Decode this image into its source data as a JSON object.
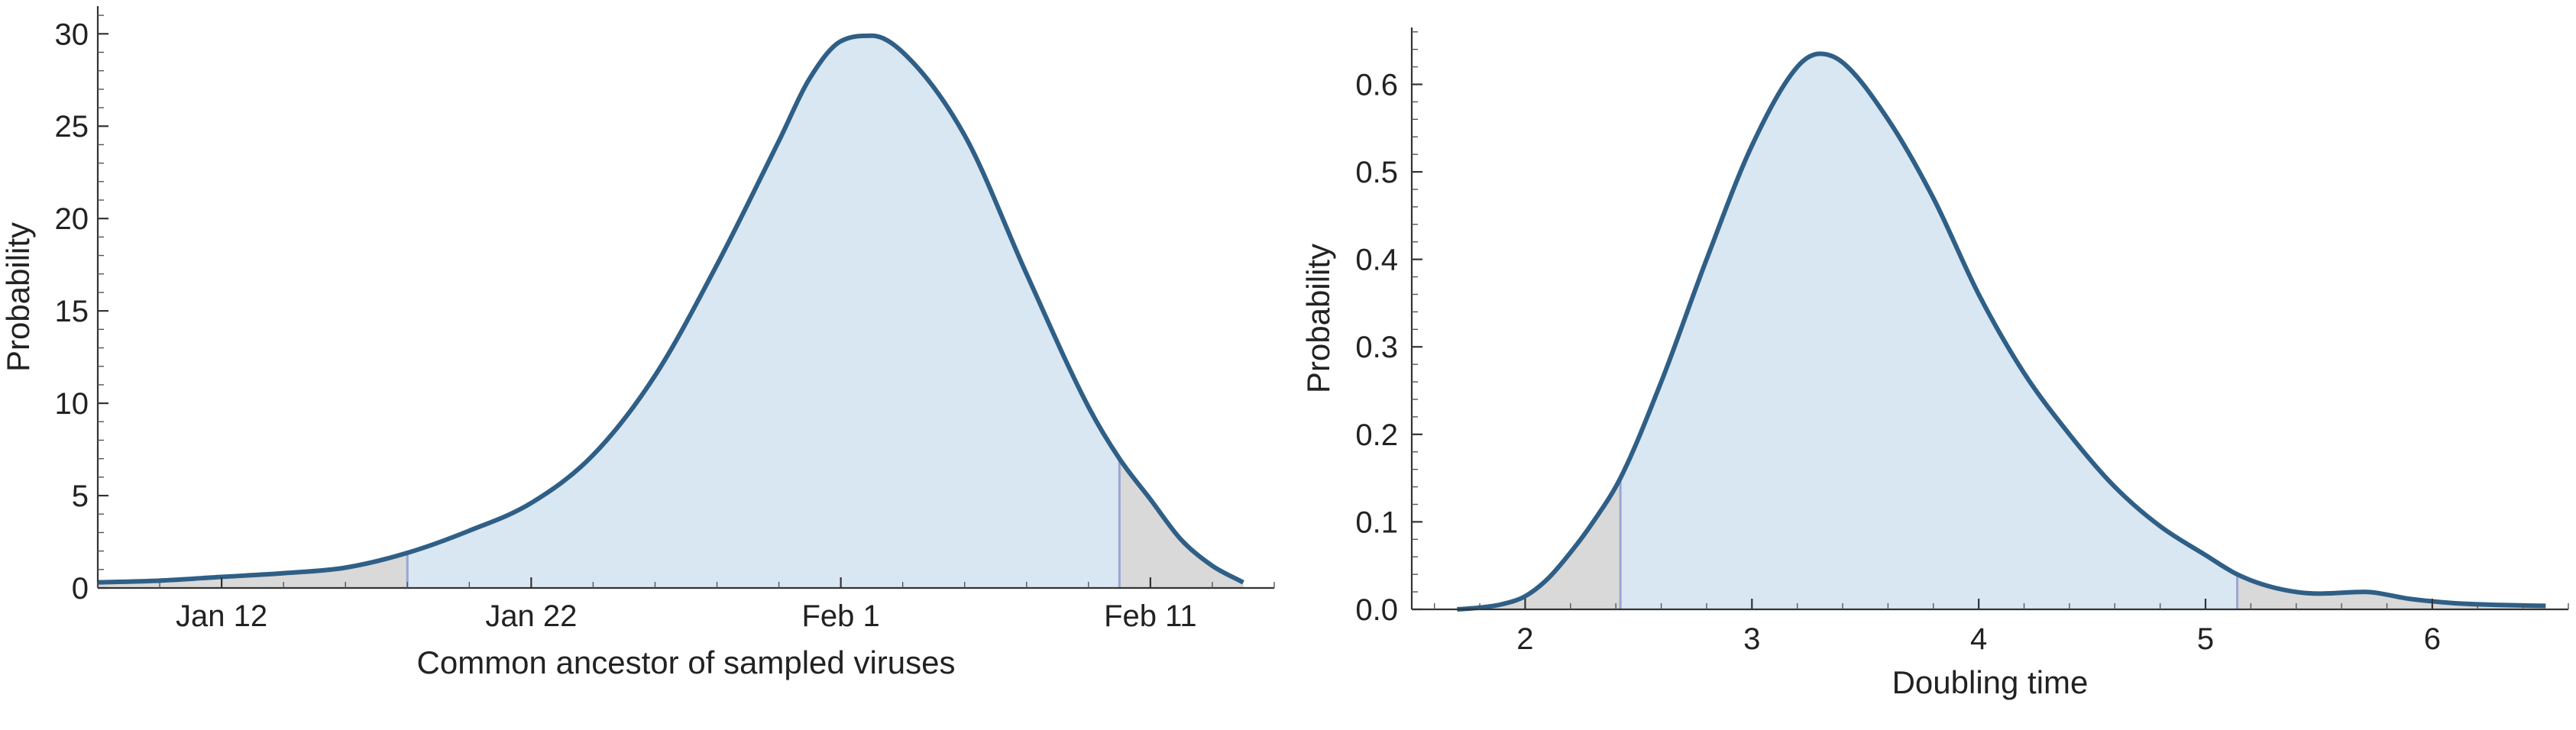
{
  "chart_data": [
    {
      "type": "area",
      "xlabel": "Common ancestor of sampled viruses",
      "ylabel": "Probability",
      "x_unit": "days",
      "x_ticks": [
        {
          "value": "2020-01-12",
          "label": "Jan 12"
        },
        {
          "value": "2020-01-22",
          "label": "Jan 22"
        },
        {
          "value": "2020-02-01",
          "label": "Feb 1"
        },
        {
          "value": "2020-02-11",
          "label": "Feb 11"
        }
      ],
      "y_ticks": [
        0,
        5,
        10,
        15,
        20,
        25,
        30
      ],
      "y_tick_labels": [
        "0",
        "5",
        "10",
        "15",
        "20",
        "25",
        "30"
      ],
      "xlim": [
        "2020-01-08",
        "2020-02-15"
      ],
      "ylim": [
        0,
        31.5
      ],
      "ci": [
        "2020-01-18",
        "2020-02-10"
      ],
      "x": [
        "2020-01-08",
        "2020-01-10",
        "2020-01-12",
        "2020-01-14",
        "2020-01-16",
        "2020-01-18",
        "2020-01-20",
        "2020-01-22",
        "2020-01-24",
        "2020-01-26",
        "2020-01-28",
        "2020-01-30",
        "2020-01-31",
        "2020-02-01",
        "2020-02-02",
        "2020-02-03",
        "2020-02-05",
        "2020-02-07",
        "2020-02-09",
        "2020-02-10",
        "2020-02-11",
        "2020-02-12",
        "2020-02-13",
        "2020-02-14"
      ],
      "y": [
        0.3,
        0.4,
        0.6,
        0.8,
        1.1,
        1.9,
        3.1,
        4.6,
        7.2,
        11.5,
        17.5,
        24.2,
        27.6,
        29.6,
        29.9,
        29.0,
        24.5,
        17.0,
        9.8,
        7.0,
        4.8,
        2.6,
        1.2,
        0.3
      ],
      "colors": {
        "curve": "#2f5f86",
        "ci_fill": "#d9e7f3",
        "tail_fill": "#d9d9d9",
        "ci_line": "#9aa6d2"
      }
    },
    {
      "type": "area",
      "xlabel": "Doubling time",
      "ylabel": "Probability",
      "x_ticks": [
        {
          "value": 2,
          "label": "2"
        },
        {
          "value": 3,
          "label": "3"
        },
        {
          "value": 4,
          "label": "4"
        },
        {
          "value": 5,
          "label": "5"
        },
        {
          "value": 6,
          "label": "6"
        }
      ],
      "y_ticks": [
        0,
        0.1,
        0.2,
        0.3,
        0.4,
        0.5,
        0.6
      ],
      "y_tick_labels": [
        "0.0",
        "0.1",
        "0.2",
        "0.3",
        "0.4",
        "0.5",
        "0.6"
      ],
      "xlim": [
        1.5,
        6.6
      ],
      "ylim": [
        0,
        0.665
      ],
      "ci": [
        2.42,
        5.14
      ],
      "x": [
        1.7,
        1.8,
        1.9,
        2.0,
        2.1,
        2.2,
        2.3,
        2.42,
        2.6,
        2.8,
        3.0,
        3.2,
        3.3,
        3.4,
        3.6,
        3.8,
        4.0,
        4.2,
        4.4,
        4.6,
        4.8,
        5.0,
        5.14,
        5.3,
        5.5,
        5.7,
        5.9,
        6.1,
        6.3,
        6.5
      ],
      "y": [
        0.0,
        0.002,
        0.006,
        0.015,
        0.035,
        0.065,
        0.1,
        0.15,
        0.26,
        0.4,
        0.53,
        0.62,
        0.635,
        0.625,
        0.56,
        0.47,
        0.36,
        0.27,
        0.2,
        0.14,
        0.095,
        0.062,
        0.04,
        0.025,
        0.018,
        0.02,
        0.012,
        0.007,
        0.005,
        0.004
      ],
      "colors": {
        "curve": "#2f5f86",
        "ci_fill": "#d9e7f3",
        "tail_fill": "#d9d9d9",
        "ci_line": "#9aa6d2"
      }
    }
  ]
}
